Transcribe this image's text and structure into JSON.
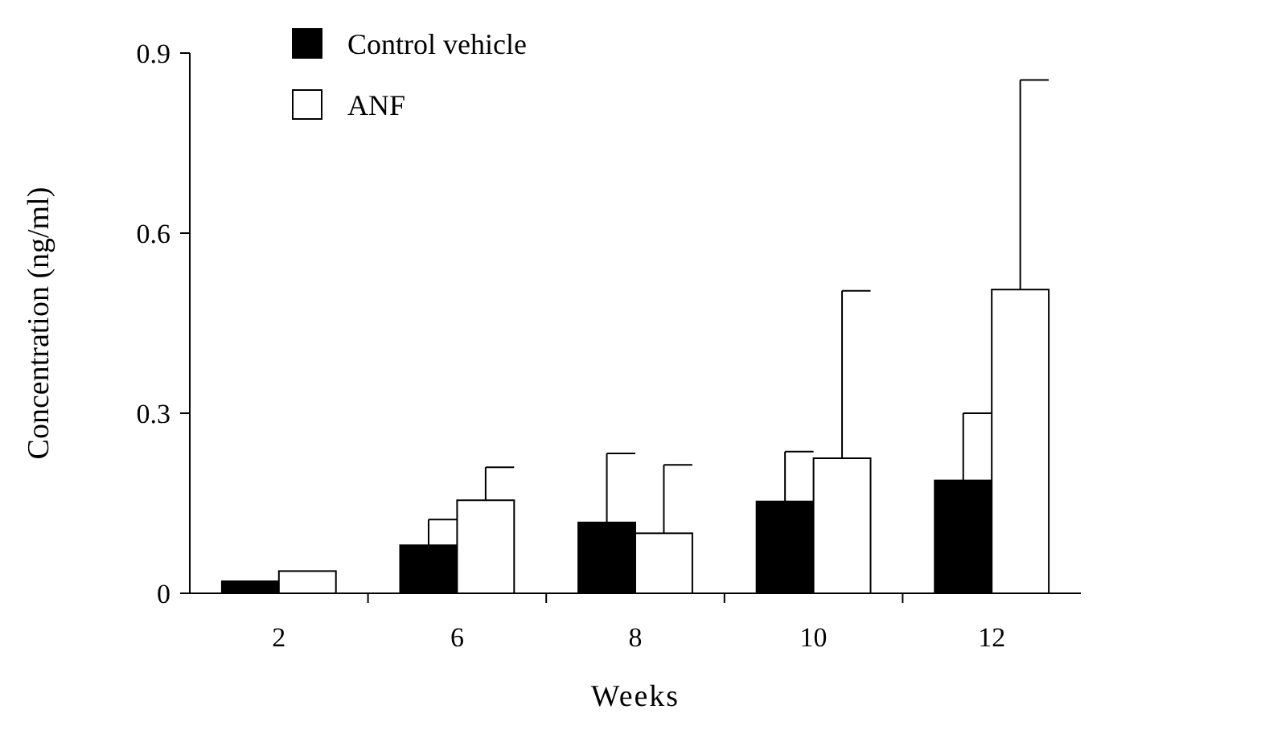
{
  "chart_data": {
    "type": "bar",
    "xlabel": "Weeks",
    "ylabel": "Concentration (ng/ml)",
    "categories": [
      "2",
      "6",
      "8",
      "10",
      "12"
    ],
    "series": [
      {
        "name": "Control vehicle",
        "color": "#000000",
        "values": [
          0.02,
          0.08,
          0.118,
          0.153,
          0.188
        ],
        "errors": [
          null,
          [
            0.08,
            0.123
          ],
          [
            0.118,
            0.233
          ],
          [
            0.153,
            0.236
          ],
          [
            0.188,
            0.3
          ]
        ]
      },
      {
        "name": "ANF",
        "color": "#ffffff",
        "values": [
          0.037,
          0.155,
          0.1,
          0.225,
          0.506
        ],
        "errors": [
          null,
          [
            0.155,
            0.21
          ],
          [
            0.1,
            0.214
          ],
          [
            0.225,
            0.504
          ],
          [
            0.506,
            0.855
          ]
        ]
      }
    ],
    "ylim": [
      0,
      0.9
    ],
    "yticks": [
      0,
      0.3,
      0.6,
      0.9
    ],
    "grid": false,
    "legend": "top left"
  }
}
